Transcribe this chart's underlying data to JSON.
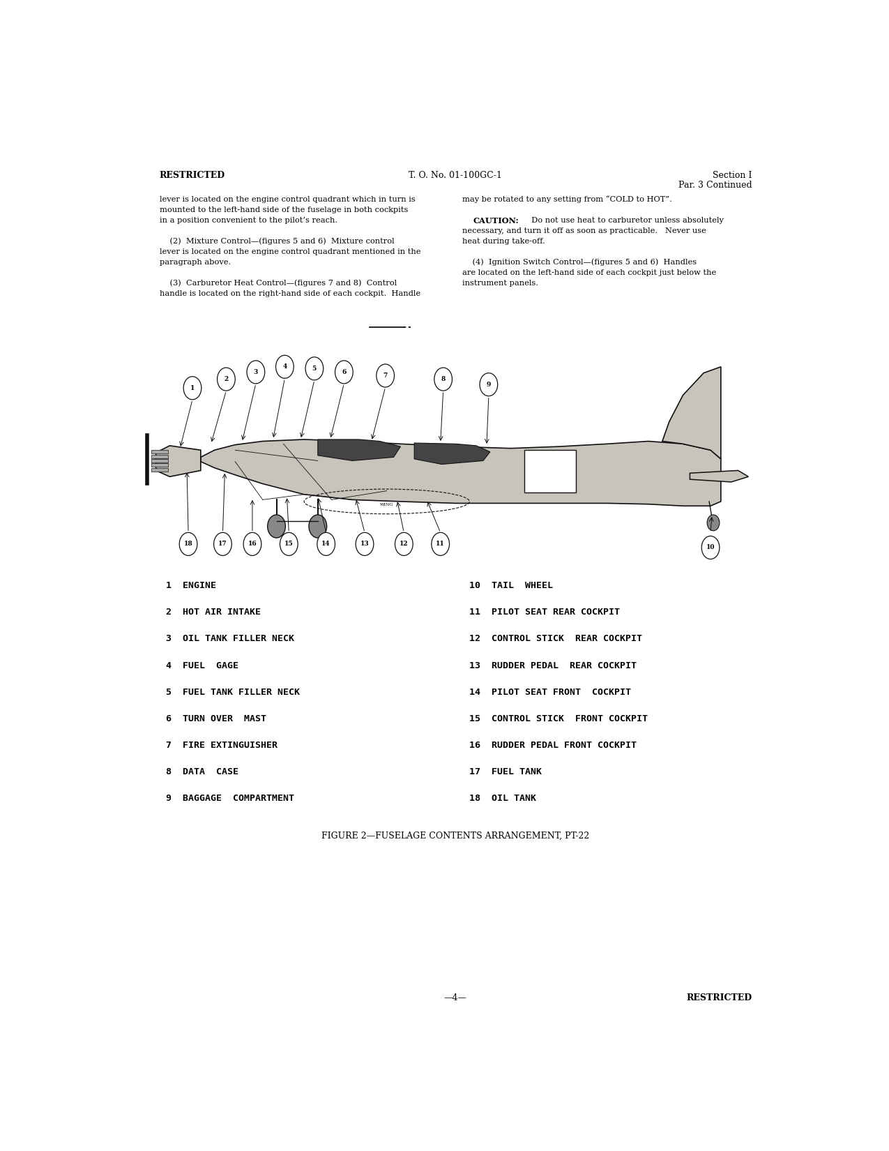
{
  "page_width": 12.75,
  "page_height": 16.5,
  "dpi": 100,
  "background_color": "#ffffff",
  "header": {
    "left": "RESTRICTED",
    "center": "T. O. No. 01-100GC-1",
    "right_line1": "Section I",
    "right_line2": "Par. 3 Continued"
  },
  "footer": {
    "center": "—4—",
    "right": "RESTRICTED"
  },
  "body_left_col": [
    "lever is located on the engine control quadrant which in turn is",
    "mounted to the left-hand side of the fuselage in both cockpits",
    "in a position convenient to the pilot’s reach.",
    "",
    "    (2)  Mixture Control—(figures 5 and 6)  Mixture control",
    "lever is located on the engine control quadrant mentioned in the",
    "paragraph above.",
    "",
    "    (3)  Carburetor Heat Control—(figures 7 and 8)  Control",
    "handle is located on the right-hand side of each cockpit.  Handle"
  ],
  "body_right_col": [
    "may be rotated to any setting from “COLD to HOT”.",
    "",
    "    CAUTION:  Do not use heat to carburetor unless absolutely",
    "necessary, and turn it off as soon as practicable.   Never use",
    "heat during take-off.",
    "",
    "    (4)  Ignition Switch Control—(figures 5 and 6)  Handles",
    "are located on the left-hand side of each cockpit just below the",
    "instrument panels."
  ],
  "legend_left": [
    "1  ENGINE",
    "2  HOT AIR INTAKE",
    "3  OIL TANK FILLER NECK",
    "4  FUEL  GAGE",
    "5  FUEL TANK FILLER NECK",
    "6  TURN OVER  MAST",
    "7  FIRE EXTINGUISHER",
    "8  DATA  CASE",
    "9  BAGGAGE  COMPARTMENT"
  ],
  "legend_right": [
    "10  TAIL  WHEEL",
    "11  PILOT SEAT REAR COCKPIT",
    "12  CONTROL STICK  REAR COCKPIT",
    "13  RUDDER PEDAL  REAR COCKPIT",
    "14  PILOT SEAT FRONT  COCKPIT",
    "15  CONTROL STICK  FRONT COCKPIT",
    "16  RUDDER PEDAL FRONT COCKPIT",
    "17  FUEL TANK",
    "18  OIL TANK"
  ],
  "figure_caption": "FIGURE 2—FUSELAGE CONTENTS ARRANGEMENT, PT-22"
}
